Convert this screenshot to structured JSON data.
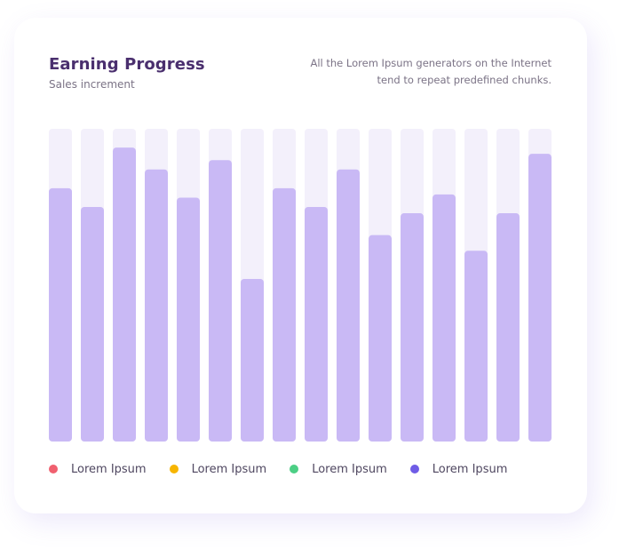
{
  "header": {
    "title": "Earning Progress",
    "subtitle": "Sales increment",
    "description_line1": "All the Lorem Ipsum generators on the Internet",
    "description_line2": "tend to repeat predefined chunks."
  },
  "legend": [
    {
      "label": "Lorem Ipsum",
      "color": "#f0606f"
    },
    {
      "label": "Lorem Ipsum",
      "color": "#f7b500"
    },
    {
      "label": "Lorem Ipsum",
      "color": "#4ccf85"
    },
    {
      "label": "Lorem Ipsum",
      "color": "#6f5ce6"
    }
  ],
  "colors": {
    "bar": "#c9b9f5",
    "track": "#f3f0fb"
  },
  "chart_data": {
    "type": "bar",
    "title": "Earning Progress",
    "subtitle": "Sales increment",
    "values": [
      81,
      75,
      94,
      87,
      78,
      90,
      52,
      81,
      75,
      87,
      66,
      73,
      79,
      61,
      73,
      92
    ],
    "ylim": [
      0,
      100
    ],
    "grid": false,
    "legend_position": "bottom-left"
  }
}
